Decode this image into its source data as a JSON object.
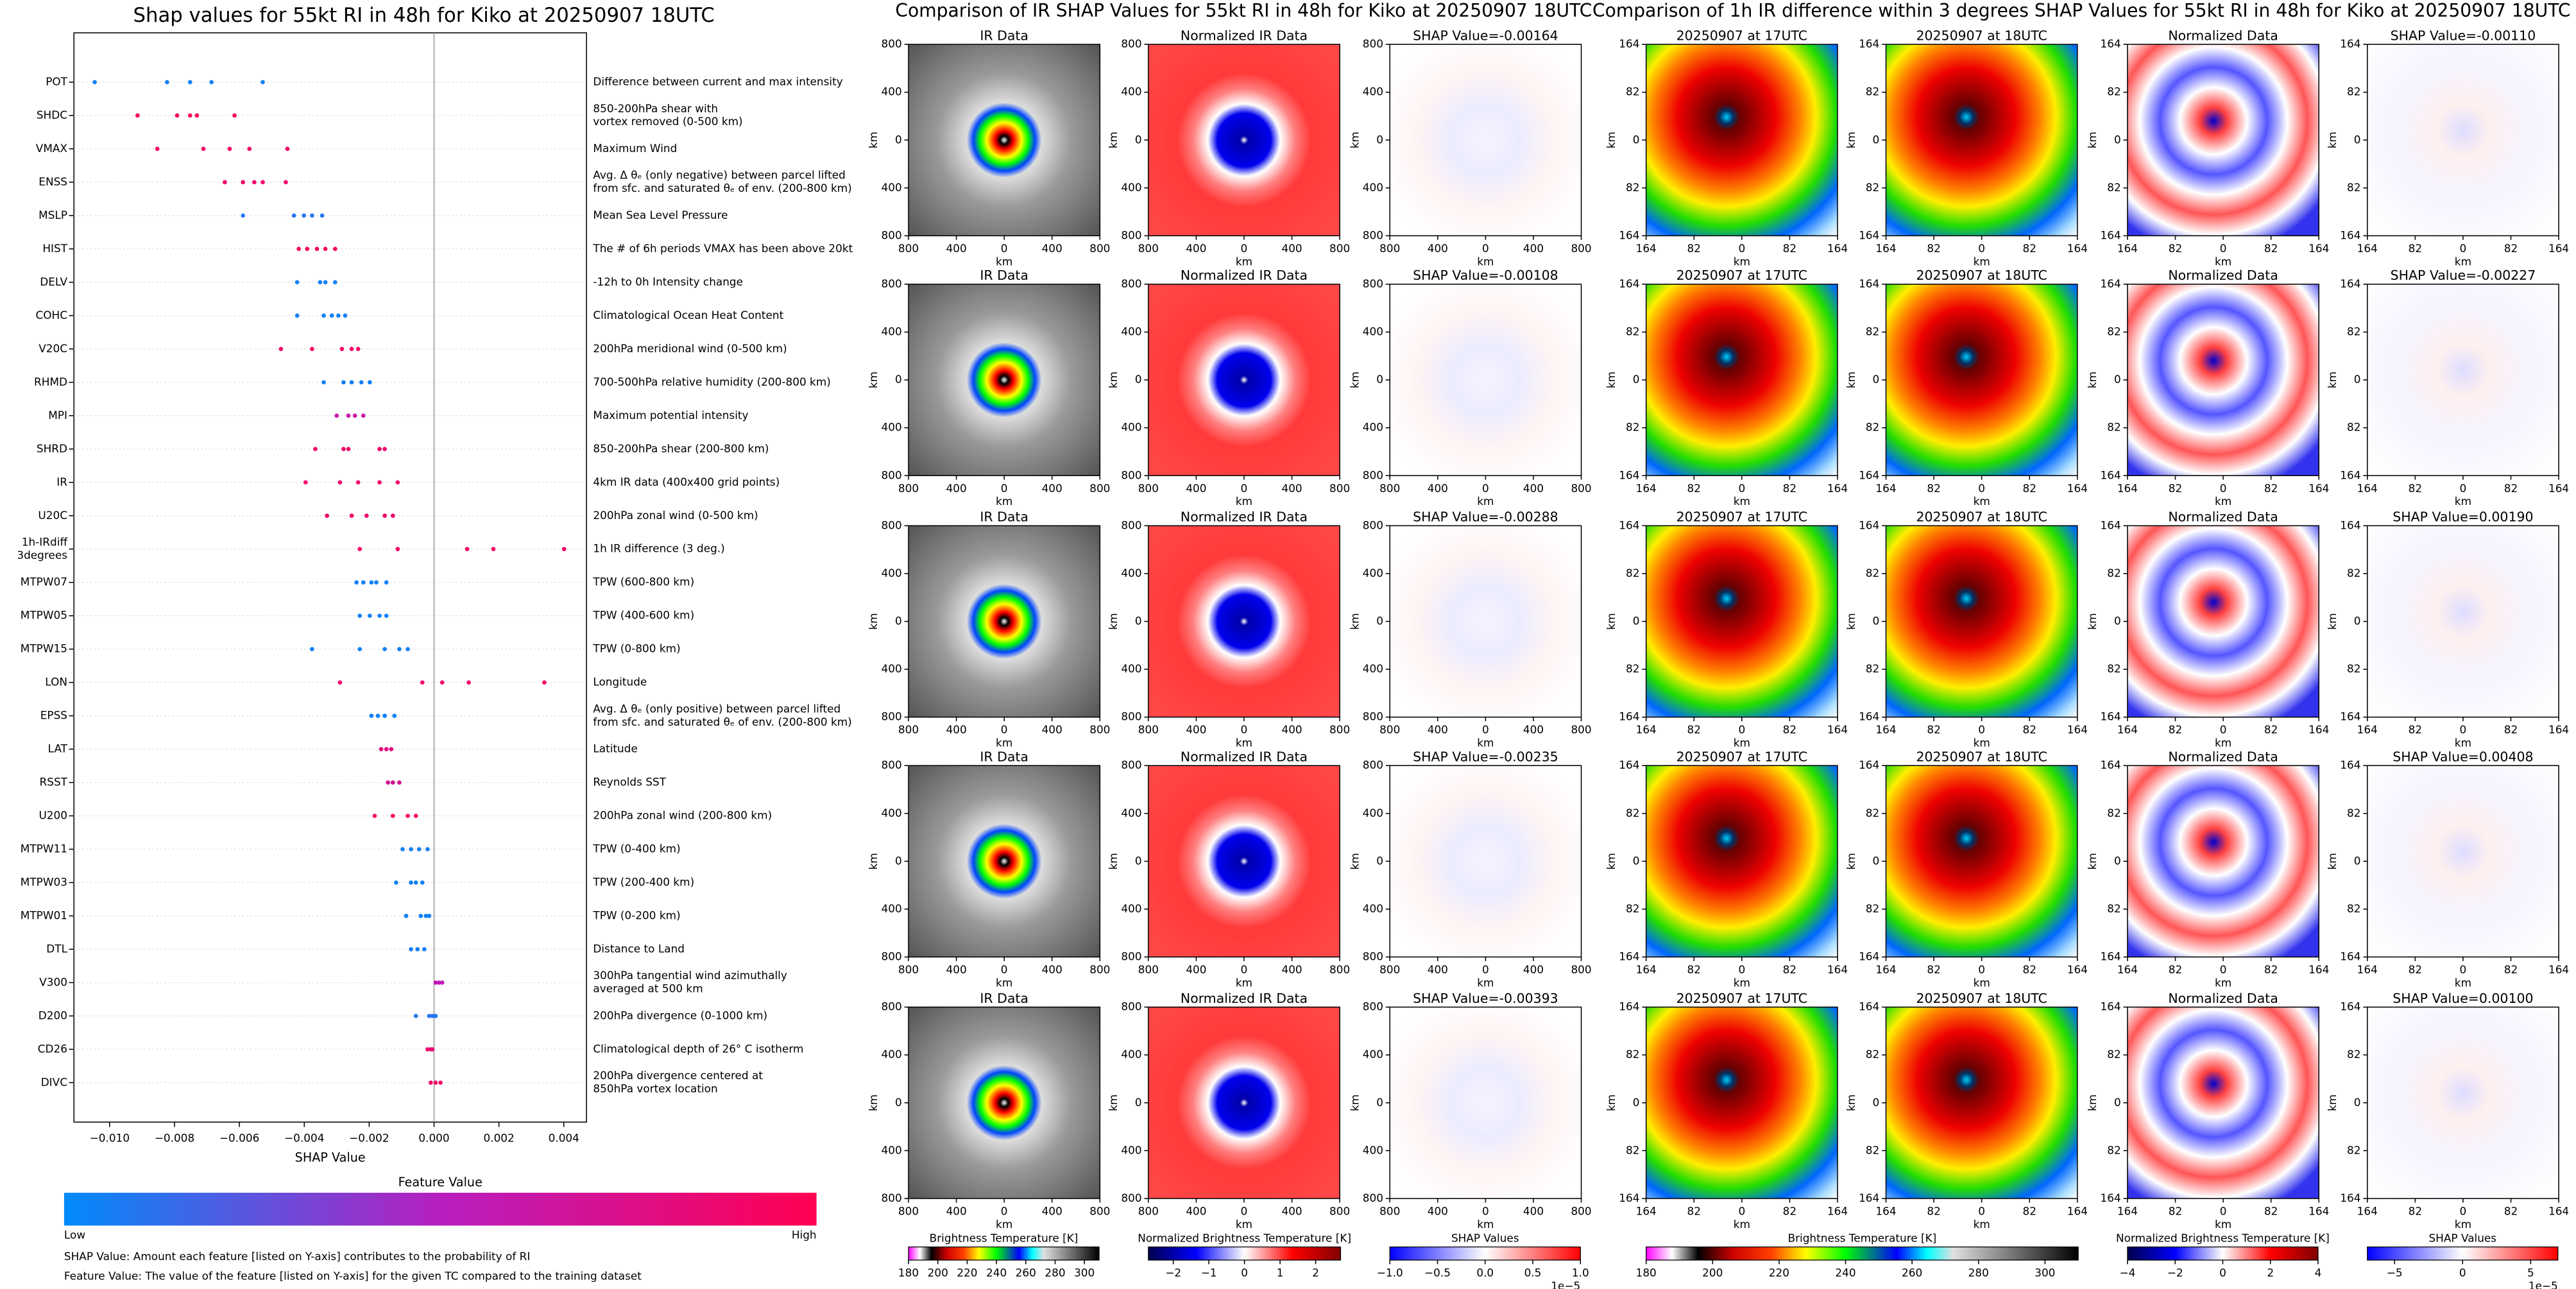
{
  "chart_data": [
    {
      "type": "beeswarm",
      "title": "Shap values for 55kt RI in 48h for Kiko at 20250907 18UTC",
      "xlabel": "SHAP Value",
      "xlim": [
        -0.0111,
        0.0047
      ],
      "xticks": [
        {
          "value": -0.01,
          "label": "−0.010"
        },
        {
          "value": -0.008,
          "label": "−0.008"
        },
        {
          "value": -0.006,
          "label": "−0.006"
        },
        {
          "value": -0.004,
          "label": "−0.004"
        },
        {
          "value": -0.002,
          "label": "−0.002"
        },
        {
          "value": 0,
          "label": "0.000"
        },
        {
          "value": 0.002,
          "label": "0.002"
        },
        {
          "value": 0.004,
          "label": "0.004"
        }
      ],
      "colors": [
        "#008bfb",
        "#b81ec0",
        "#ff0052"
      ],
      "features": [
        {
          "name": [
            "POT"
          ],
          "description": [
            "Difference between current and max intensity"
          ],
          "shap": [
            -0.01046,
            -0.00823,
            -0.00752,
            -0.00686,
            -0.00528
          ],
          "feature_value": 0.05
        },
        {
          "name": [
            "SHDC"
          ],
          "description": [
            "850-200hPa shear with",
            "vortex removed (0-500 km)"
          ],
          "shap": [
            -0.00914,
            -0.00792,
            -0.00752,
            -0.00731,
            -0.00615
          ],
          "feature_value": 0.95
        },
        {
          "name": [
            "VMAX"
          ],
          "description": [
            "Maximum Wind"
          ],
          "shap": [
            -0.00853,
            -0.00711,
            -0.0063,
            -0.00569,
            -0.00452
          ],
          "feature_value": 0.9
        },
        {
          "name": [
            "ENSS"
          ],
          "description": [
            "Avg. Δ θₑ (only negative) between parcel lifted",
            "from sfc. and saturated θₑ of env. (200-800 km)"
          ],
          "shap": [
            -0.00645,
            -0.00589,
            -0.00554,
            -0.00528,
            -0.00457
          ],
          "feature_value": 0.9
        },
        {
          "name": [
            "MSLP"
          ],
          "description": [
            "Mean Sea Level Pressure"
          ],
          "shap": [
            -0.00589,
            -0.00432,
            -0.00401,
            -0.00376,
            -0.00345
          ],
          "feature_value": 0.1
        },
        {
          "name": [
            "HIST"
          ],
          "description": [
            "The # of 6h periods VMAX has been above 20kt"
          ],
          "shap": [
            -0.00417,
            -0.00391,
            -0.00361,
            -0.00335,
            -0.00305
          ],
          "feature_value": 0.95
        },
        {
          "name": [
            "DELV"
          ],
          "description": [
            "-12h to 0h Intensity change"
          ],
          "shap": [
            -0.00422,
            -0.00351,
            -0.00335,
            -0.00305
          ],
          "feature_value": 0.05
        },
        {
          "name": [
            "COHC"
          ],
          "description": [
            "Climatological Ocean Heat Content"
          ],
          "shap": [
            -0.00422,
            -0.0034,
            -0.00315,
            -0.00295,
            -0.00274
          ],
          "feature_value": 0.05
        },
        {
          "name": [
            "V20C"
          ],
          "description": [
            "200hPa meridional wind (0-500 km)"
          ],
          "shap": [
            -0.00472,
            -0.00376,
            -0.00284,
            -0.00254,
            -0.00234
          ],
          "feature_value": 0.9
        },
        {
          "name": [
            "RHMD"
          ],
          "description": [
            "700-500hPa relative humidity (200-800 km)"
          ],
          "shap": [
            -0.0034,
            -0.00279,
            -0.00254,
            -0.00224,
            -0.00198
          ],
          "feature_value": 0.05
        },
        {
          "name": [
            "MPI"
          ],
          "description": [
            "Maximum potential intensity"
          ],
          "shap": [
            -0.003,
            -0.00264,
            -0.00244,
            -0.00218
          ],
          "feature_value": 0.6
        },
        {
          "name": [
            "SHRD"
          ],
          "description": [
            "850-200hPa shear (200-800 km)"
          ],
          "shap": [
            -0.00366,
            -0.00279,
            -0.00264,
            -0.00168,
            -0.00152
          ],
          "feature_value": 0.9
        },
        {
          "name": [
            "IR"
          ],
          "description": [
            "4km IR data (400x400 grid points)"
          ],
          "shap": [
            -0.00396,
            -0.0029,
            -0.00234,
            -0.00168,
            -0.00112
          ],
          "feature_value": 0.9
        },
        {
          "name": [
            "U20C"
          ],
          "description": [
            "200hPa zonal wind (0-500 km)"
          ],
          "shap": [
            -0.0033,
            -0.00254,
            -0.00208,
            -0.00152,
            -0.00127
          ],
          "feature_value": 0.9
        },
        {
          "name": [
            "1h-IRdiff",
            "3degrees"
          ],
          "description": [
            "1h IR difference (3 deg.)"
          ],
          "shap": [
            -0.00229,
            -0.00112,
            0.00102,
            0.00183,
            0.00401
          ],
          "feature_value": 0.9
        },
        {
          "name": [
            "MTPW07"
          ],
          "description": [
            "TPW (600-800 km)"
          ],
          "shap": [
            -0.00239,
            -0.00218,
            -0.00193,
            -0.00178,
            -0.00147
          ],
          "feature_value": 0.05
        },
        {
          "name": [
            "MTPW05"
          ],
          "description": [
            "TPW (400-600 km)"
          ],
          "shap": [
            -0.00229,
            -0.00198,
            -0.00168,
            -0.00147
          ],
          "feature_value": 0.05
        },
        {
          "name": [
            "MTPW15"
          ],
          "description": [
            "TPW (0-800 km)"
          ],
          "shap": [
            -0.00376,
            -0.00229,
            -0.00152,
            -0.00107,
            -0.00081
          ],
          "feature_value": 0.05
        },
        {
          "name": [
            "LON"
          ],
          "description": [
            "Longitude"
          ],
          "shap": [
            -0.0029,
            -0.00036,
            0.00025,
            0.00107,
            0.0034
          ],
          "feature_value": 0.9
        },
        {
          "name": [
            "EPSS"
          ],
          "description": [
            "Avg. Δ θₑ (only positive) between parcel lifted",
            "from sfc. and saturated θₑ of env. (200-800 km)"
          ],
          "shap": [
            -0.00193,
            -0.00173,
            -0.00152,
            -0.00122
          ],
          "feature_value": 0.05
        },
        {
          "name": [
            "LAT"
          ],
          "description": [
            "Latitude"
          ],
          "shap": [
            -0.00163,
            -0.00147,
            -0.00132
          ],
          "feature_value": 0.8
        },
        {
          "name": [
            "RSST"
          ],
          "description": [
            "Reynolds SST"
          ],
          "shap": [
            -0.00142,
            -0.00127,
            -0.00107
          ],
          "feature_value": 0.7
        },
        {
          "name": [
            "U200"
          ],
          "description": [
            "200hPa zonal wind (200-800 km)"
          ],
          "shap": [
            -0.00183,
            -0.00127,
            -0.00081,
            -0.00056
          ],
          "feature_value": 0.9
        },
        {
          "name": [
            "MTPW11"
          ],
          "description": [
            "TPW (0-400 km)"
          ],
          "shap": [
            -0.00097,
            -0.00071,
            -0.00046,
            -0.0002
          ],
          "feature_value": 0.05
        },
        {
          "name": [
            "MTPW03"
          ],
          "description": [
            "TPW (200-400 km)"
          ],
          "shap": [
            -0.00117,
            -0.00071,
            -0.00056,
            -0.00036
          ],
          "feature_value": 0.05
        },
        {
          "name": [
            "MTPW01"
          ],
          "description": [
            "TPW (0-200 km)"
          ],
          "shap": [
            -0.00086,
            -0.00041,
            -0.00025,
            -0.00015
          ],
          "feature_value": 0.05
        },
        {
          "name": [
            "DTL"
          ],
          "description": [
            "Distance to Land"
          ],
          "shap": [
            -0.00071,
            -0.00051,
            -0.0003
          ],
          "feature_value": 0.05
        },
        {
          "name": [
            "V300"
          ],
          "description": [
            "300hPa tangential wind azimuthally",
            "averaged at 500 km"
          ],
          "shap": [
            5e-05,
            0.00015,
            0.00025
          ],
          "feature_value": 0.55
        },
        {
          "name": [
            "D200"
          ],
          "description": [
            "200hPa divergence (0-1000 km)"
          ],
          "shap": [
            -0.00056,
            -0.00015,
            -5e-05,
            5e-05
          ],
          "feature_value": 0.1
        },
        {
          "name": [
            "CD26"
          ],
          "description": [
            "Climatological depth of 26° C isotherm"
          ],
          "shap": [
            -0.0002,
            -0.0001,
            -5e-05
          ],
          "feature_value": 0.85
        },
        {
          "name": [
            "DIVC"
          ],
          "description": [
            "200hPa divergence centered at",
            "850hPa vortex location"
          ],
          "shap": [
            -0.0001,
            5e-05,
            0.0002
          ],
          "feature_value": 0.9
        }
      ],
      "colorbar": {
        "label": "Feature Value",
        "low": "Low",
        "high": "High"
      },
      "notes": [
        "SHAP Value: Amount each feature [listed on Y-axis] contributes to the probability of RI",
        "Feature Value: The value of the feature [listed on Y-axis] for the given TC compared to the training dataset"
      ]
    },
    {
      "type": "image_grid",
      "title": "Comparison of IR SHAP Values for 55kt RI in 48h for Kiko at 20250907 18UTC",
      "columns": [
        "IR Data",
        "Normalized IR Data"
      ],
      "shap_titles": [
        "SHAP Value=-0.00164",
        "SHAP Value=-0.00108",
        "SHAP Value=-0.00288",
        "SHAP Value=-0.00235",
        "SHAP Value=-0.00393"
      ],
      "xlabel": "km",
      "ylabel": "km",
      "xlim": [
        -800,
        800
      ],
      "ylim": [
        -800,
        800
      ],
      "xticks": [
        {
          "value": -800,
          "label": "800"
        },
        {
          "value": -400,
          "label": "400"
        },
        0,
        400,
        800
      ],
      "yticks": [
        {
          "value": -800,
          "label": "800"
        },
        {
          "value": -400,
          "label": "400"
        },
        0,
        400,
        800
      ],
      "colorbars": [
        {
          "label": "Brightness Temperature [K]",
          "cmap": "ir",
          "lim": [
            180,
            310
          ],
          "ticks": [
            180,
            200,
            220,
            240,
            260,
            280,
            300
          ]
        },
        {
          "label": "Normalized Brightness Temperature [K]",
          "cmap": "seismic",
          "lim": [
            -2.7,
            2.7
          ],
          "ticks": [
            {
              "value": -2,
              "label": "−2"
            },
            {
              "value": -1,
              "label": "−1"
            },
            0,
            1,
            2
          ]
        },
        {
          "label": "SHAP Values",
          "cmap": "bwr",
          "lim": [
            -1,
            1
          ],
          "ticks": [
            {
              "value": -1,
              "label": "−1.0"
            },
            {
              "value": -0.5,
              "label": "−0.5"
            },
            {
              "value": 0,
              "label": "0.0"
            },
            0.5,
            {
              "value": 1,
              "label": "1.0"
            }
          ],
          "offset": "1e−5"
        }
      ]
    },
    {
      "type": "image_grid",
      "title": "Comparison of 1h IR difference within 3 degrees SHAP Values for 55kt RI in 48h for Kiko at 20250907 18UTC",
      "columns": [
        "20250907 at 17UTC",
        "20250907 at 18UTC",
        "Normalized Data"
      ],
      "shap_titles": [
        "SHAP Value=-0.00110",
        "SHAP Value=-0.00227",
        "SHAP Value=0.00190",
        "SHAP Value=0.00408",
        "SHAP Value=0.00100"
      ],
      "xlabel": "km",
      "ylabel": "km",
      "xlim": [
        -164,
        164
      ],
      "ylim": [
        -164,
        164
      ],
      "xticks": [
        {
          "value": -164,
          "label": "164"
        },
        {
          "value": -82,
          "label": "82"
        },
        0,
        82,
        164
      ],
      "yticks": [
        {
          "value": -164,
          "label": "164"
        },
        {
          "value": -82,
          "label": "82"
        },
        0,
        82,
        164
      ],
      "colorbars": [
        {
          "label": "Brightness Temperature [K]",
          "cmap": "ir",
          "lim": [
            180,
            310
          ],
          "ticks": [
            180,
            200,
            220,
            240,
            260,
            280,
            300
          ]
        },
        {
          "label": "Normalized Brightness Temperature [K]",
          "cmap": "seismic",
          "lim": [
            -4,
            4
          ],
          "ticks": [
            {
              "value": -4,
              "label": "−4"
            },
            {
              "value": -2,
              "label": "−2"
            },
            0,
            2,
            4
          ]
        },
        {
          "label": "SHAP Values",
          "cmap": "bwr",
          "lim": [
            -7,
            7
          ],
          "ticks": [
            {
              "value": -5,
              "label": "−5"
            },
            0,
            5
          ],
          "offset": "1e−5"
        }
      ]
    }
  ]
}
